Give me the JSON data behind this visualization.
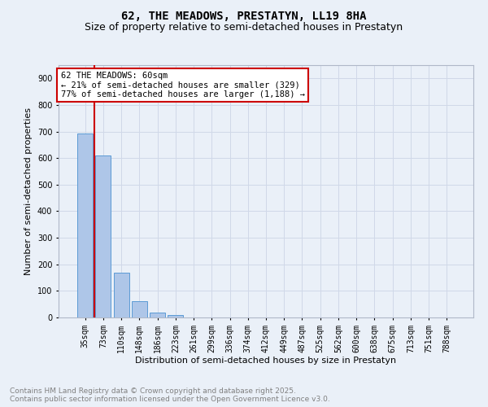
{
  "title": "62, THE MEADOWS, PRESTATYN, LL19 8HA",
  "subtitle": "Size of property relative to semi-detached houses in Prestatyn",
  "xlabel": "Distribution of semi-detached houses by size in Prestatyn",
  "ylabel": "Number of semi-detached properties",
  "categories": [
    "35sqm",
    "73sqm",
    "110sqm",
    "148sqm",
    "186sqm",
    "223sqm",
    "261sqm",
    "299sqm",
    "336sqm",
    "374sqm",
    "412sqm",
    "449sqm",
    "487sqm",
    "525sqm",
    "562sqm",
    "600sqm",
    "638sqm",
    "675sqm",
    "713sqm",
    "751sqm",
    "788sqm"
  ],
  "values": [
    693,
    611,
    168,
    60,
    18,
    8,
    0,
    0,
    0,
    0,
    0,
    0,
    0,
    0,
    0,
    0,
    0,
    0,
    0,
    0,
    0
  ],
  "ylim": [
    0,
    950
  ],
  "yticks": [
    0,
    100,
    200,
    300,
    400,
    500,
    600,
    700,
    800,
    900
  ],
  "bar_color": "#aec6e8",
  "bar_edge_color": "#5b9bd5",
  "grid_color": "#d0d8e8",
  "bg_color": "#eaf0f8",
  "annotation_text": "62 THE MEADOWS: 60sqm\n← 21% of semi-detached houses are smaller (329)\n77% of semi-detached houses are larger (1,188) →",
  "annotation_box_color": "#ffffff",
  "annotation_box_edge_color": "#cc0000",
  "footer_text": "Contains HM Land Registry data © Crown copyright and database right 2025.\nContains public sector information licensed under the Open Government Licence v3.0.",
  "footer_color": "#808080",
  "title_fontsize": 10,
  "subtitle_fontsize": 9,
  "axis_label_fontsize": 8,
  "tick_fontsize": 7,
  "annotation_fontsize": 7.5,
  "footer_fontsize": 6.5
}
